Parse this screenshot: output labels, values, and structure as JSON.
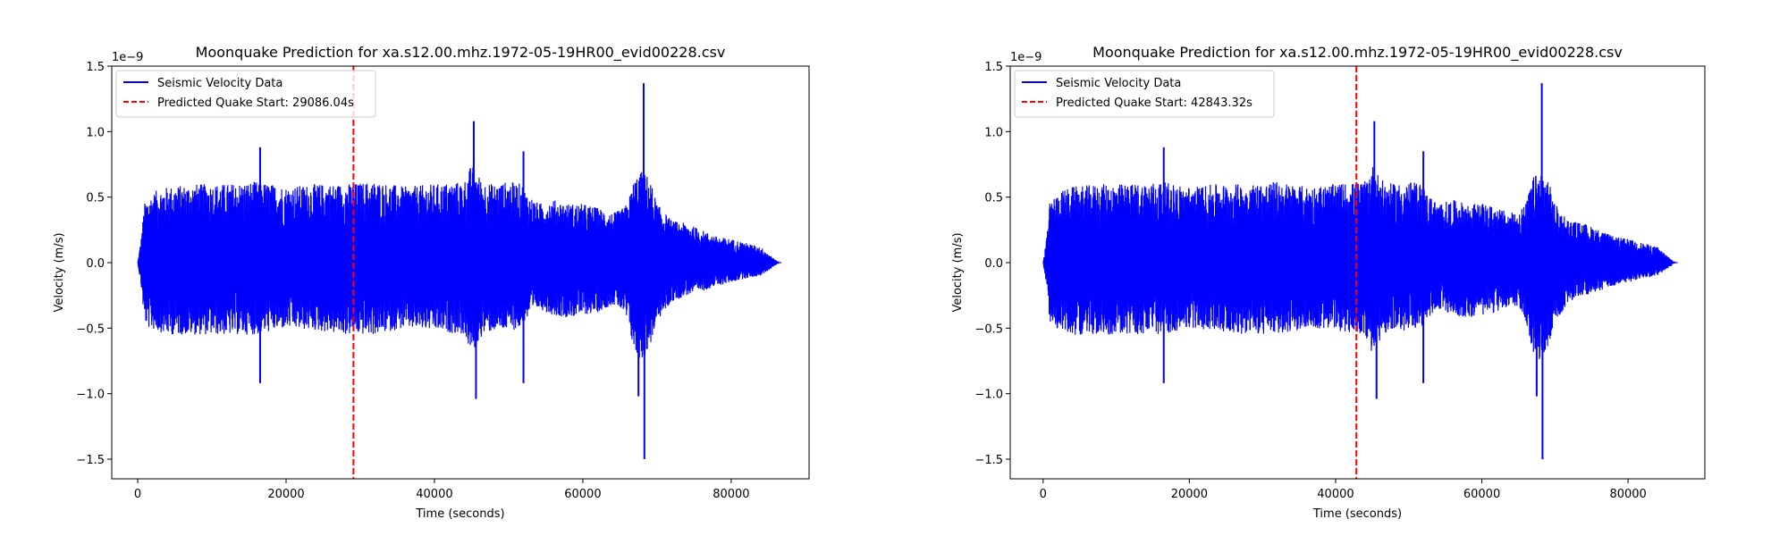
{
  "chart_data": [
    {
      "type": "line",
      "title": "Moonquake Prediction for xa.s12.00.mhz.1972-05-19HR00_evid00228.csv",
      "xlabel": "Time (seconds)",
      "ylabel": "Velocity (m/s)",
      "y_offset_label": "1e−9",
      "xlim": [
        -3500,
        90500
      ],
      "ylim": [
        -1.65,
        1.5
      ],
      "xticks": [
        0,
        20000,
        40000,
        60000,
        80000
      ],
      "xtick_labels": [
        "0",
        "20000",
        "40000",
        "60000",
        "80000"
      ],
      "yticks": [
        -1.5,
        -1.0,
        -0.5,
        0.0,
        0.5,
        1.0,
        1.5
      ],
      "ytick_labels": [
        "−1.5",
        "−1.0",
        "−0.5",
        "0.0",
        "0.5",
        "1.0",
        "1.5"
      ],
      "grid": false,
      "legend_position": "upper-left",
      "series": [
        {
          "name": "Seismic Velocity Data",
          "color": "#0000ff",
          "style": "solid",
          "x_range": [
            0,
            86400
          ],
          "envelope_x": [
            0,
            500,
            900,
            1500,
            2500,
            4000,
            8000,
            12000,
            16000,
            20000,
            24000,
            28000,
            32000,
            36000,
            40000,
            44000,
            45000,
            46500,
            48000,
            50000,
            52000,
            52200,
            54000,
            56000,
            58000,
            60000,
            62000,
            64000,
            65000,
            66000,
            67000,
            68000,
            69000,
            70000,
            72000,
            74000,
            76000,
            78000,
            80000,
            82000,
            84000,
            86000,
            86400
          ],
          "envelope_upper": [
            0.0,
            0.2,
            0.45,
            0.5,
            0.55,
            0.58,
            0.6,
            0.6,
            0.62,
            0.58,
            0.6,
            0.6,
            0.62,
            0.58,
            0.6,
            0.62,
            0.75,
            0.62,
            0.6,
            0.62,
            0.6,
            0.55,
            0.45,
            0.48,
            0.45,
            0.45,
            0.42,
            0.38,
            0.4,
            0.45,
            0.65,
            0.7,
            0.65,
            0.45,
            0.32,
            0.3,
            0.25,
            0.2,
            0.18,
            0.15,
            0.12,
            0.02,
            0.0
          ],
          "envelope_lower": [
            0.0,
            -0.2,
            -0.45,
            -0.5,
            -0.52,
            -0.55,
            -0.55,
            -0.55,
            -0.55,
            -0.5,
            -0.52,
            -0.55,
            -0.55,
            -0.5,
            -0.52,
            -0.55,
            -0.7,
            -0.55,
            -0.52,
            -0.52,
            -0.5,
            -0.45,
            -0.35,
            -0.4,
            -0.42,
            -0.4,
            -0.38,
            -0.32,
            -0.35,
            -0.45,
            -0.7,
            -0.75,
            -0.65,
            -0.45,
            -0.3,
            -0.25,
            -0.22,
            -0.18,
            -0.15,
            -0.12,
            -0.1,
            -0.02,
            0.0
          ],
          "spikes": [
            {
              "x": 16500,
              "y": 0.88
            },
            {
              "x": 16500,
              "y": -0.92
            },
            {
              "x": 45300,
              "y": 1.08
            },
            {
              "x": 45600,
              "y": -1.04
            },
            {
              "x": 52000,
              "y": 0.85
            },
            {
              "x": 52000,
              "y": -0.92
            },
            {
              "x": 67500,
              "y": -1.02
            },
            {
              "x": 68200,
              "y": 1.37
            },
            {
              "x": 68300,
              "y": -1.5
            }
          ]
        }
      ],
      "prediction": {
        "label": "Predicted Quake Start: 29086.04s",
        "x": 29086.04,
        "color": "#ff0000",
        "style": "dashed"
      }
    },
    {
      "type": "line",
      "title": "Moonquake Prediction for xa.s12.00.mhz.1972-05-19HR00_evid00228.csv",
      "xlabel": "Time (seconds)",
      "ylabel": "Velocity (m/s)",
      "y_offset_label": "1e−9",
      "xlim": [
        -4500,
        90500
      ],
      "ylim": [
        -1.65,
        1.5
      ],
      "xticks": [
        0,
        20000,
        40000,
        60000,
        80000
      ],
      "xtick_labels": [
        "0",
        "20000",
        "40000",
        "60000",
        "80000"
      ],
      "yticks": [
        -1.5,
        -1.0,
        -0.5,
        0.0,
        0.5,
        1.0,
        1.5
      ],
      "ytick_labels": [
        "−1.5",
        "−1.0",
        "−0.5",
        "0.0",
        "0.5",
        "1.0",
        "1.5"
      ],
      "grid": false,
      "legend_position": "upper-left",
      "series": [
        {
          "name": "Seismic Velocity Data",
          "color": "#0000ff",
          "style": "solid",
          "x_range": [
            0,
            86400
          ],
          "envelope_x": [
            0,
            500,
            900,
            1500,
            2500,
            4000,
            8000,
            12000,
            16000,
            20000,
            24000,
            28000,
            32000,
            36000,
            40000,
            44000,
            45000,
            46500,
            48000,
            50000,
            52000,
            52200,
            54000,
            56000,
            58000,
            60000,
            62000,
            64000,
            65000,
            66000,
            67000,
            68000,
            69000,
            70000,
            72000,
            74000,
            76000,
            78000,
            80000,
            82000,
            84000,
            86000,
            86400
          ],
          "envelope_upper": [
            0.0,
            0.2,
            0.45,
            0.5,
            0.55,
            0.58,
            0.6,
            0.6,
            0.62,
            0.58,
            0.6,
            0.6,
            0.62,
            0.58,
            0.6,
            0.62,
            0.75,
            0.62,
            0.6,
            0.62,
            0.6,
            0.55,
            0.45,
            0.48,
            0.45,
            0.45,
            0.42,
            0.38,
            0.4,
            0.45,
            0.65,
            0.7,
            0.65,
            0.45,
            0.32,
            0.3,
            0.25,
            0.2,
            0.18,
            0.15,
            0.12,
            0.02,
            0.0
          ],
          "envelope_lower": [
            0.0,
            -0.2,
            -0.45,
            -0.5,
            -0.52,
            -0.55,
            -0.55,
            -0.55,
            -0.55,
            -0.5,
            -0.52,
            -0.55,
            -0.55,
            -0.5,
            -0.52,
            -0.55,
            -0.7,
            -0.55,
            -0.52,
            -0.52,
            -0.5,
            -0.45,
            -0.35,
            -0.4,
            -0.42,
            -0.4,
            -0.38,
            -0.32,
            -0.35,
            -0.45,
            -0.7,
            -0.75,
            -0.65,
            -0.45,
            -0.3,
            -0.25,
            -0.22,
            -0.18,
            -0.15,
            -0.12,
            -0.1,
            -0.02,
            0.0
          ],
          "spikes": [
            {
              "x": 16500,
              "y": 0.88
            },
            {
              "x": 16500,
              "y": -0.92
            },
            {
              "x": 45300,
              "y": 1.08
            },
            {
              "x": 45600,
              "y": -1.04
            },
            {
              "x": 52000,
              "y": 0.85
            },
            {
              "x": 52000,
              "y": -0.92
            },
            {
              "x": 67500,
              "y": -1.02
            },
            {
              "x": 68200,
              "y": 1.37
            },
            {
              "x": 68300,
              "y": -1.5
            }
          ]
        }
      ],
      "prediction": {
        "label": "Predicted Quake Start: 42843.32s",
        "x": 42843.32,
        "color": "#ff0000",
        "style": "dashed"
      }
    }
  ]
}
